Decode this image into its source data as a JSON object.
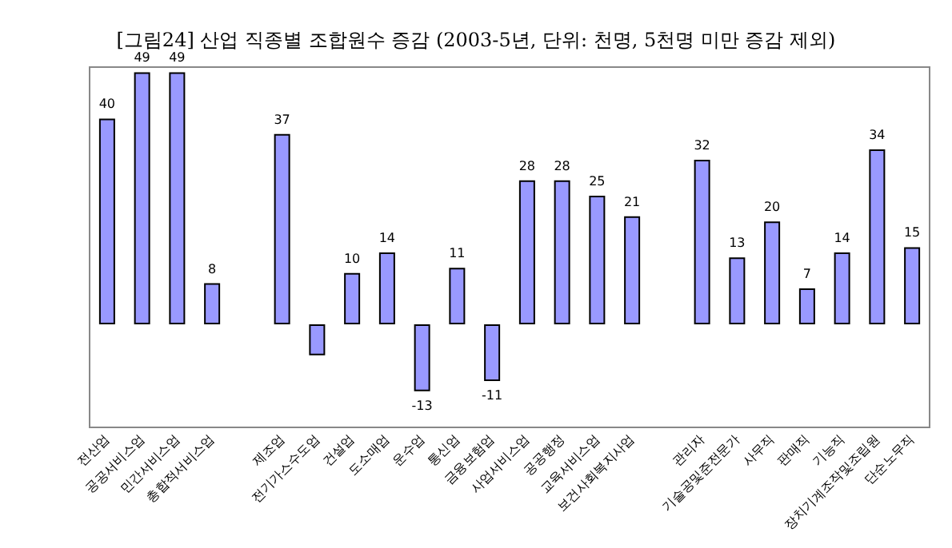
{
  "chart_data": {
    "type": "bar",
    "title": "[그림24] 산업 직종별 조합원수 증감 (2003-5년, 단위: 천명, 5천명 미만 증감 제외)",
    "categories": [
      "전산업",
      "공공서비스업",
      "민간서비스업",
      "총합적서비스업",
      null,
      "제조업",
      "전기가스수도업",
      "건설업",
      "도소매업",
      "운수업",
      "통신업",
      "금융보험업",
      "사업서비스업",
      "공공행정",
      "교육서비스업",
      "보건사회복지사업",
      null,
      "관리자",
      "기술공및준전문가",
      "사무직",
      "판매직",
      "기능직",
      "장치기계조작및조립원",
      "단순노무직"
    ],
    "values": [
      40,
      49,
      49,
      8,
      null,
      37,
      -6,
      10,
      14,
      -13,
      11,
      -11,
      28,
      28,
      25,
      21,
      null,
      32,
      13,
      20,
      7,
      14,
      34,
      15
    ],
    "value_labels": [
      "40",
      "49",
      "49",
      "8",
      null,
      "37",
      null,
      "10",
      "14",
      "-13",
      "11",
      "-11",
      "28",
      "28",
      "25",
      "21",
      null,
      "32",
      "13",
      "20",
      "7",
      "14",
      "34",
      "15"
    ],
    "color": "#9999ff",
    "grid": false,
    "tick_labels": "x"
  }
}
